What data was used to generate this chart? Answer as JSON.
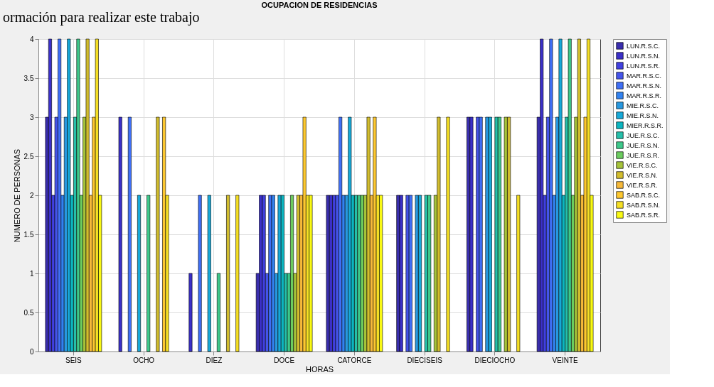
{
  "chart_data": {
    "type": "bar",
    "title": "OCUPACION DE RESIDENCIAS",
    "xlabel": "HORAS",
    "ylabel": "NUMERO DE PERSONAS",
    "annotations": [
      "ormación para realizar este trabajo"
    ],
    "categories": [
      "SEIS",
      "OCHO",
      "DIEZ",
      "DOCE",
      "CATORCE",
      "DIECISEIS",
      "DIECIOCHO",
      "VEINTE"
    ],
    "series": [
      {
        "name": "LUN.R.S.C.",
        "color": "#3a2eae",
        "values": [
          3,
          null,
          null,
          1,
          2,
          2,
          3,
          3
        ]
      },
      {
        "name": "LUN.R.S.N.",
        "color": "#3b30c8",
        "values": [
          4,
          3,
          1,
          2,
          2,
          2,
          3,
          4
        ]
      },
      {
        "name": "LUN.R.S.R.",
        "color": "#4140e0",
        "values": [
          2,
          null,
          null,
          2,
          2,
          null,
          null,
          2
        ]
      },
      {
        "name": "MAR.R.S.C.",
        "color": "#4554ea",
        "values": [
          3,
          null,
          null,
          1,
          2,
          2,
          3,
          3
        ]
      },
      {
        "name": "MAR.R.S.N.",
        "color": "#3f6ff5",
        "values": [
          4,
          3,
          2,
          2,
          3,
          2,
          3,
          4
        ]
      },
      {
        "name": "MAR.R.S.R.",
        "color": "#3282f0",
        "values": [
          2,
          null,
          null,
          2,
          2,
          null,
          null,
          2
        ]
      },
      {
        "name": "MIE.R.S.C.",
        "color": "#2898e0",
        "values": [
          3,
          null,
          null,
          1,
          2,
          2,
          3,
          3
        ]
      },
      {
        "name": "MIE.R.S.N.",
        "color": "#17a9d8",
        "values": [
          4,
          2,
          2,
          2,
          3,
          2,
          3,
          4
        ]
      },
      {
        "name": "MIER.R.S.R.",
        "color": "#0cb5c0",
        "values": [
          2,
          null,
          null,
          2,
          2,
          null,
          null,
          2
        ]
      },
      {
        "name": "JUE.R.S.C.",
        "color": "#26bfaa",
        "values": [
          3,
          null,
          null,
          1,
          2,
          2,
          3,
          3
        ]
      },
      {
        "name": "JUE.R.S.N.",
        "color": "#3ec88a",
        "values": [
          4,
          2,
          1,
          1,
          2,
          2,
          3,
          4
        ]
      },
      {
        "name": "JUE.R.S.R.",
        "color": "#6ccc5f",
        "values": [
          2,
          null,
          null,
          2,
          2,
          null,
          null,
          2
        ]
      },
      {
        "name": "VIE.R.S.C.",
        "color": "#a6c33a",
        "values": [
          3,
          null,
          null,
          1,
          2,
          2,
          3,
          3
        ]
      },
      {
        "name": "VIE.R.S.N.",
        "color": "#d2bd2e",
        "values": [
          4,
          3,
          2,
          2,
          3,
          3,
          3,
          4
        ]
      },
      {
        "name": "VIE.R.S.R.",
        "color": "#f6b93a",
        "values": [
          2,
          null,
          null,
          2,
          2,
          null,
          null,
          2
        ]
      },
      {
        "name": "SAB.R.S.C.",
        "color": "#fdc830",
        "values": [
          3,
          3,
          null,
          3,
          3,
          null,
          null,
          3
        ]
      },
      {
        "name": "SAB.R.S.N.",
        "color": "#f5df25",
        "values": [
          4,
          2,
          2,
          2,
          2,
          3,
          2,
          4
        ]
      },
      {
        "name": "SAB.R.S.R.",
        "color": "#f9f914",
        "values": [
          2,
          null,
          null,
          2,
          2,
          null,
          null,
          2
        ]
      }
    ],
    "ylim": [
      0,
      4
    ],
    "yticks": [
      0,
      0.5,
      1,
      1.5,
      2,
      2.5,
      3,
      3.5,
      4
    ],
    "grid": true,
    "legend": "top right"
  }
}
